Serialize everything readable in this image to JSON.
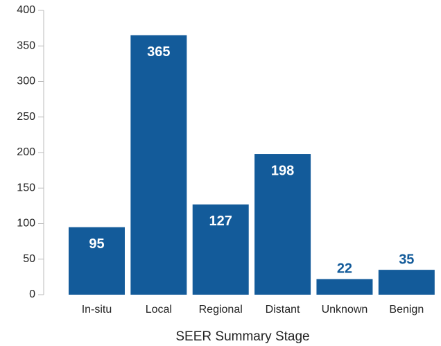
{
  "chart_data": {
    "type": "bar",
    "x_label": "SEER Summary Stage",
    "categories": [
      "In-situ",
      "Local",
      "Regional",
      "Distant",
      "Unknown",
      "Benign"
    ],
    "values": [
      95,
      365,
      127,
      198,
      22,
      35
    ],
    "color": "#135b9a",
    "ylim": [
      0,
      400
    ],
    "yticks": [
      0,
      50,
      100,
      150,
      200,
      250,
      300,
      350,
      400
    ],
    "grid": false
  }
}
